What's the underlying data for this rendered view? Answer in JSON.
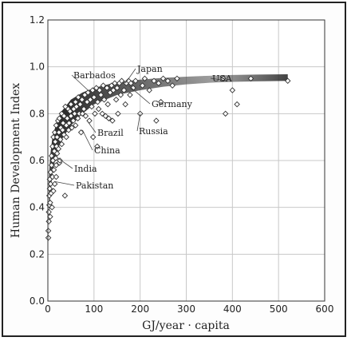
{
  "chart_data": {
    "type": "scatter",
    "title": "",
    "xlabel": "GJ/year · capita",
    "ylabel": "Human Development Index",
    "xlim": [
      0,
      600
    ],
    "ylim": [
      0,
      1.2
    ],
    "xticks": [
      0,
      100,
      200,
      300,
      400,
      500,
      600
    ],
    "yticks": [
      0,
      0.2,
      0.4,
      0.6,
      0.8,
      1.0,
      1.2
    ],
    "grid": true,
    "trend_band": {
      "description": "shaded saturation curve",
      "x": [
        2,
        5,
        10,
        20,
        30,
        50,
        75,
        100,
        150,
        200,
        250,
        300,
        350,
        400,
        450,
        520
      ],
      "upper": [
        0.52,
        0.62,
        0.7,
        0.77,
        0.81,
        0.86,
        0.89,
        0.91,
        0.935,
        0.945,
        0.953,
        0.958,
        0.962,
        0.965,
        0.967,
        0.968
      ],
      "lower": [
        0.3,
        0.44,
        0.55,
        0.64,
        0.69,
        0.75,
        0.8,
        0.84,
        0.88,
        0.9,
        0.915,
        0.925,
        0.932,
        0.936,
        0.938,
        0.94
      ]
    },
    "points": [
      [
        1,
        0.27
      ],
      [
        1,
        0.3
      ],
      [
        2,
        0.34
      ],
      [
        2,
        0.38
      ],
      [
        3,
        0.41
      ],
      [
        3,
        0.45
      ],
      [
        4,
        0.48
      ],
      [
        4,
        0.52
      ],
      [
        5,
        0.36
      ],
      [
        5,
        0.42
      ],
      [
        6,
        0.55
      ],
      [
        6,
        0.5
      ],
      [
        7,
        0.46
      ],
      [
        8,
        0.58
      ],
      [
        8,
        0.62
      ],
      [
        9,
        0.4
      ],
      [
        10,
        0.53
      ],
      [
        10,
        0.66
      ],
      [
        11,
        0.6
      ],
      [
        12,
        0.47
      ],
      [
        12,
        0.7
      ],
      [
        13,
        0.56
      ],
      [
        14,
        0.64
      ],
      [
        15,
        0.5
      ],
      [
        15,
        0.72
      ],
      [
        16,
        0.68
      ],
      [
        17,
        0.61
      ],
      [
        18,
        0.75
      ],
      [
        18,
        0.58
      ],
      [
        19,
        0.66
      ],
      [
        20,
        0.7
      ],
      [
        20,
        0.63
      ],
      [
        22,
        0.77
      ],
      [
        23,
        0.65
      ],
      [
        24,
        0.72
      ],
      [
        25,
        0.59
      ],
      [
        25,
        0.78
      ],
      [
        27,
        0.69
      ],
      [
        28,
        0.74
      ],
      [
        30,
        0.8
      ],
      [
        30,
        0.67
      ],
      [
        32,
        0.73
      ],
      [
        33,
        0.76
      ],
      [
        35,
        0.71
      ],
      [
        35,
        0.79
      ],
      [
        37,
        0.45
      ],
      [
        38,
        0.83
      ],
      [
        40,
        0.75
      ],
      [
        40,
        0.7
      ],
      [
        42,
        0.78
      ],
      [
        44,
        0.82
      ],
      [
        45,
        0.73
      ],
      [
        46,
        0.76
      ],
      [
        48,
        0.81
      ],
      [
        50,
        0.79
      ],
      [
        50,
        0.84
      ],
      [
        52,
        0.74
      ],
      [
        55,
        0.77
      ],
      [
        56,
        0.82
      ],
      [
        58,
        0.8
      ],
      [
        60,
        0.75
      ],
      [
        60,
        0.85
      ],
      [
        62,
        0.83
      ],
      [
        65,
        0.78
      ],
      [
        66,
        0.87
      ],
      [
        68,
        0.8
      ],
      [
        70,
        0.84
      ],
      [
        72,
        0.72
      ],
      [
        74,
        0.86
      ],
      [
        75,
        0.8
      ],
      [
        78,
        0.82
      ],
      [
        80,
        0.88
      ],
      [
        82,
        0.79
      ],
      [
        85,
        0.85
      ],
      [
        87,
        0.89
      ],
      [
        90,
        0.77
      ],
      [
        92,
        0.86
      ],
      [
        95,
        0.83
      ],
      [
        97,
        0.9
      ],
      [
        100,
        0.87
      ],
      [
        102,
        0.8
      ],
      [
        105,
        0.91
      ],
      [
        108,
        0.85
      ],
      [
        110,
        0.82
      ],
      [
        112,
        0.9
      ],
      [
        115,
        0.88
      ],
      [
        118,
        0.8
      ],
      [
        120,
        0.92
      ],
      [
        122,
        0.86
      ],
      [
        125,
        0.79
      ],
      [
        128,
        0.91
      ],
      [
        130,
        0.84
      ],
      [
        132,
        0.78
      ],
      [
        135,
        0.89
      ],
      [
        138,
        0.92
      ],
      [
        140,
        0.77
      ],
      [
        142,
        0.9
      ],
      [
        145,
        0.93
      ],
      [
        148,
        0.86
      ],
      [
        150,
        0.91
      ],
      [
        152,
        0.8
      ],
      [
        155,
        0.93
      ],
      [
        158,
        0.88
      ],
      [
        160,
        0.94
      ],
      [
        165,
        0.9
      ],
      [
        168,
        0.84
      ],
      [
        170,
        0.93
      ],
      [
        175,
        0.94
      ],
      [
        178,
        0.88
      ],
      [
        180,
        0.93
      ],
      [
        185,
        0.91
      ],
      [
        190,
        0.94
      ],
      [
        200,
        0.8
      ],
      [
        205,
        0.92
      ],
      [
        210,
        0.95
      ],
      [
        220,
        0.9
      ],
      [
        230,
        0.94
      ],
      [
        235,
        0.77
      ],
      [
        240,
        0.93
      ],
      [
        245,
        0.85
      ],
      [
        250,
        0.95
      ],
      [
        260,
        0.94
      ],
      [
        270,
        0.92
      ],
      [
        280,
        0.95
      ],
      [
        380,
        0.95
      ],
      [
        385,
        0.8
      ],
      [
        400,
        0.9
      ],
      [
        410,
        0.84
      ],
      [
        440,
        0.95
      ],
      [
        520,
        0.94
      ],
      [
        107,
        0.66
      ],
      [
        98,
        0.7
      ],
      [
        26,
        0.6
      ],
      [
        18,
        0.53
      ]
    ],
    "annotations": [
      {
        "label": "Barbados",
        "x": 98,
        "y": 0.88
      },
      {
        "label": "Japan",
        "x": 168,
        "y": 0.93
      },
      {
        "label": "Germany",
        "x": 175,
        "y": 0.92
      },
      {
        "label": "USA",
        "x": 390,
        "y": 0.94
      },
      {
        "label": "Brazil",
        "x": 85,
        "y": 0.77
      },
      {
        "label": "China",
        "x": 75,
        "y": 0.73
      },
      {
        "label": "Russia",
        "x": 200,
        "y": 0.8
      },
      {
        "label": "India",
        "x": 22,
        "y": 0.61
      },
      {
        "label": "Pakistan",
        "x": 15,
        "y": 0.51
      }
    ]
  }
}
